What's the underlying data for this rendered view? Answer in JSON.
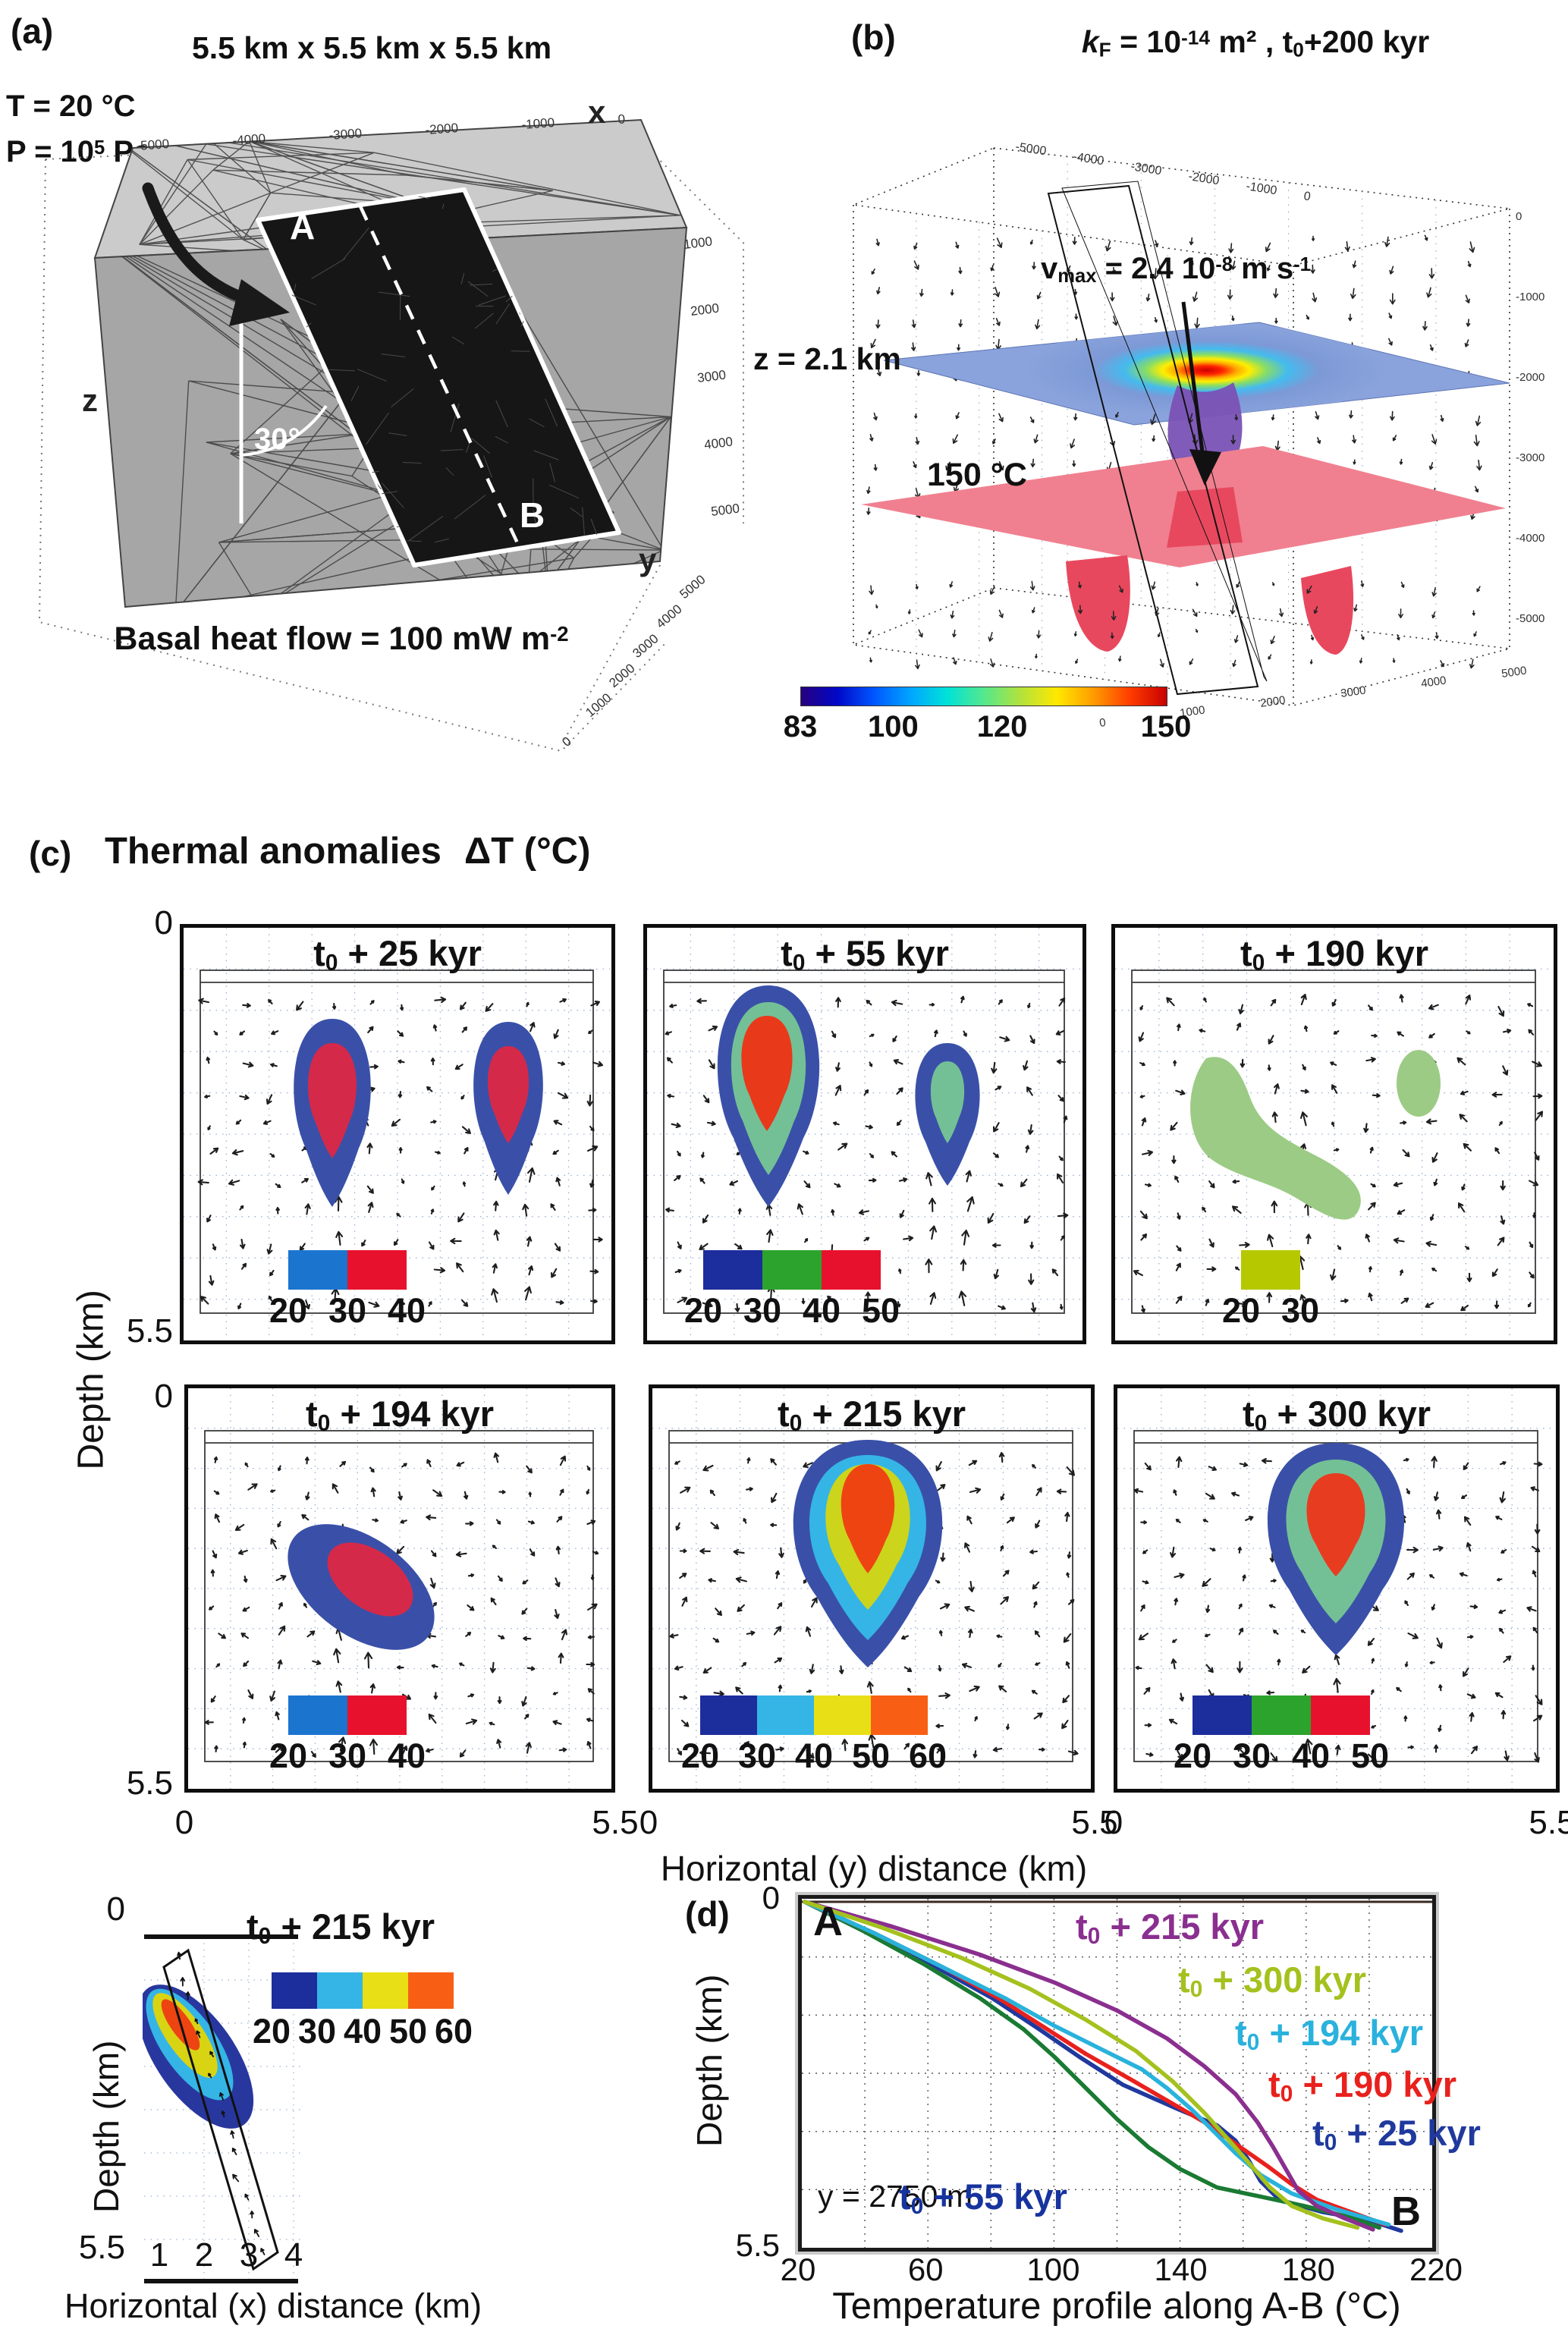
{
  "panel_a": {
    "label": "(a)",
    "title": "5.5 km  x  5.5 km  x  5.5 km",
    "temperature": "T = 20 °C",
    "pressure": {
      "pre": "P = 10",
      "sup": "5",
      "post": " Pa"
    },
    "basal": {
      "pre": "Basal heat flow = 100 mW m",
      "sup": "-2"
    },
    "axis_x": "x",
    "axis_y": "y",
    "axis_z": "z",
    "dip_angle": "30°",
    "point_a": "A",
    "point_b": "B",
    "x_ticks": [
      "-5000",
      "-4000",
      "-3000",
      "-2000",
      "-1000",
      "0"
    ],
    "z_ticks": [
      "1000",
      "2000",
      "3000",
      "4000",
      "5000"
    ],
    "y_ticks": [
      "5000",
      "4000",
      "3000",
      "2000",
      "1000",
      "0"
    ]
  },
  "panel_b": {
    "label": "(b)",
    "title": {
      "k": "k",
      "k_sub": "F",
      "mid": " = 10",
      "sup": "-14",
      "mid2": " m² , t",
      "sub2": "0",
      "end": "+200 kyr"
    },
    "z_slice": "z = 2.1 km",
    "isotherm": "150 °C",
    "vmax": {
      "pre": "v",
      "sub": "max",
      "mid": " = 2.4 10",
      "sup": "-8",
      "post": " m s",
      "sup2": "-1"
    },
    "x_ticks": [
      "-5000",
      "-4000",
      "-3000",
      "-2000",
      "-1000",
      "0"
    ],
    "z_ticks": [
      "0",
      "-1000",
      "-2000",
      "-3000",
      "-4000",
      "-5000"
    ],
    "y_ticks": [
      "0",
      "1000",
      "2000",
      "3000",
      "4000",
      "5000"
    ],
    "colorbar": {
      "min": 83,
      "max": 150,
      "ticks": [
        {
          "label": "83",
          "pos": 0.0
        },
        {
          "label": "100",
          "pos": 0.254
        },
        {
          "label": "120",
          "pos": 0.552
        },
        {
          "label": "150",
          "pos": 1.0
        }
      ],
      "gradient": [
        "#28007f",
        "#0008c8",
        "#0057ff",
        "#00a6ff",
        "#00e2d8",
        "#54e88c",
        "#b2e23c",
        "#ffe800",
        "#ff9c00",
        "#ff3c00",
        "#c80000"
      ]
    }
  },
  "panel_c": {
    "label": "(c)",
    "title": "Thermal anomalies",
    "delta": "ΔT  (°C)",
    "ylabel": "Depth  (km)",
    "y_top": "0",
    "y_bottom": "5.5",
    "x_left": "0",
    "x_right": "5.5",
    "xlabel_y": "Horizontal (y) distance  (km)",
    "xlabel_x": "Horizontal (x) distance  (km)",
    "subplots": [
      {
        "id": "t25",
        "title": {
          "pre": "t",
          "sub": "0",
          "post": " + 25 kyr"
        },
        "rings": [
          "#3a50a8",
          "#d5294a"
        ],
        "colorbar": {
          "segments": [
            "#1b75cf",
            "#e8112d"
          ],
          "labels": [
            "20",
            "30",
            "40"
          ]
        }
      },
      {
        "id": "t55",
        "title": {
          "pre": "t",
          "sub": "0",
          "post": " + 55 kyr"
        },
        "rings": [
          "#3a50a8",
          "#74c096",
          "#e8391b"
        ],
        "colorbar": {
          "segments": [
            "#1c2d9c",
            "#2ca32c",
            "#e8112d"
          ],
          "labels": [
            "20",
            "30",
            "40",
            "50"
          ]
        }
      },
      {
        "id": "t190",
        "title": {
          "pre": "t",
          "sub": "0",
          "post": " + 190 kyr"
        },
        "rings": [
          "#9ccb85"
        ],
        "colorbar": {
          "segments": [
            "#b6c800"
          ],
          "labels": [
            "20",
            "30"
          ]
        }
      },
      {
        "id": "t194",
        "title": {
          "pre": "t",
          "sub": "0",
          "post": " + 194 kyr"
        },
        "rings": [
          "#3a50a8",
          "#d5294a"
        ],
        "colorbar": {
          "segments": [
            "#1b75cf",
            "#e8112d"
          ],
          "labels": [
            "20",
            "30",
            "40"
          ]
        }
      },
      {
        "id": "t215",
        "title": {
          "pre": "t",
          "sub": "0",
          "post": " + 215 kyr"
        },
        "rings": [
          "#3a50a8",
          "#35b5e5",
          "#ccd41c",
          "#ee4411"
        ],
        "colorbar": {
          "segments": [
            "#1c2d9c",
            "#35b5e5",
            "#e8df16",
            "#f85f14"
          ],
          "labels": [
            "20",
            "30",
            "40",
            "50",
            "60"
          ]
        }
      },
      {
        "id": "t300",
        "title": {
          "pre": "t",
          "sub": "0",
          "post": " + 300 kyr"
        },
        "rings": [
          "#3a50a8",
          "#74c096",
          "#e83c20"
        ],
        "colorbar": {
          "segments": [
            "#1c2d9c",
            "#2ca32c",
            "#e8112d"
          ],
          "labels": [
            "20",
            "30",
            "40",
            "50"
          ]
        }
      }
    ],
    "xsection": {
      "title": {
        "pre": "t",
        "sub": "0",
        "post": " + 215 kyr"
      },
      "rings": [
        "#28379e",
        "#35b5e5",
        "#d8d414",
        "#ee4411"
      ],
      "colorbar": {
        "segments": [
          "#1c2d9c",
          "#35b5e5",
          "#e8df16",
          "#f85f14"
        ],
        "labels": [
          "20",
          "30",
          "40",
          "50",
          "60"
        ]
      },
      "x_ticks": [
        "1",
        "2",
        "3",
        "4"
      ],
      "y_top": "0",
      "y_bottom": "5.5"
    }
  },
  "panel_d": {
    "label": "(d)",
    "point_a": "A",
    "point_b": "B",
    "annotation": "y = 2750 m",
    "ylabel": "Depth (km)",
    "y_top": "0",
    "y_bottom": "5.5",
    "x_ticks": [
      "20",
      "60",
      "100",
      "140",
      "180",
      "220"
    ],
    "xlabel": "Temperature profile along A-B (°C)",
    "legend": [
      {
        "id": "t215",
        "color": "#8a2f8f",
        "label": {
          "pre": "t",
          "sub": "0",
          "post": " + 215 kyr"
        }
      },
      {
        "id": "t300",
        "color": "#a4c11e",
        "label": {
          "pre": "t",
          "sub": "0",
          "post": " + 300 kyr"
        }
      },
      {
        "id": "t194",
        "color": "#29b2dc",
        "label": {
          "pre": "t",
          "sub": "0",
          "post": " + 194 kyr"
        }
      },
      {
        "id": "t190",
        "color": "#e8211d",
        "label": {
          "pre": "t",
          "sub": "0",
          "post": " + 190 kyr"
        }
      },
      {
        "id": "t25",
        "color": "#20399e",
        "label": {
          "pre": "t",
          "sub": "0",
          "post": " + 25 kyr"
        }
      },
      {
        "id": "t55",
        "color": "#16339e",
        "label": {
          "pre": "t",
          "sub": "0",
          "post": " + 55 kyr"
        }
      }
    ]
  },
  "chart_data": {
    "type": "line",
    "title": "Temperature profile along A-B (°C)",
    "xlabel": "Temperature profile along A-B (°C)",
    "ylabel": "Depth (km)",
    "xlim": [
      20,
      220
    ],
    "ylim": [
      0,
      5.5
    ],
    "y_inverted": true,
    "grid": true,
    "annotation": "y = 2750 m",
    "series": [
      {
        "name": "t0 + 25 kyr",
        "color": "#20399e",
        "points": [
          [
            20,
            0
          ],
          [
            40,
            0.5
          ],
          [
            62,
            1.05
          ],
          [
            80,
            1.55
          ],
          [
            95,
            2.05
          ],
          [
            108,
            2.5
          ],
          [
            122,
            2.95
          ],
          [
            140,
            3.35
          ],
          [
            152,
            3.6
          ],
          [
            158,
            3.85
          ],
          [
            162,
            4.15
          ],
          [
            166,
            4.5
          ],
          [
            172,
            4.8
          ],
          [
            186,
            5.0
          ],
          [
            200,
            5.12
          ],
          [
            211,
            5.3
          ]
        ]
      },
      {
        "name": "t0 + 55 kyr",
        "color": "#1a7a33",
        "label_color": "#16339e",
        "points": [
          [
            20,
            0
          ],
          [
            38,
            0.45
          ],
          [
            58,
            1.0
          ],
          [
            76,
            1.55
          ],
          [
            90,
            2.05
          ],
          [
            100,
            2.5
          ],
          [
            110,
            3.0
          ],
          [
            120,
            3.5
          ],
          [
            130,
            3.95
          ],
          [
            140,
            4.3
          ],
          [
            152,
            4.6
          ],
          [
            166,
            4.75
          ],
          [
            180,
            4.9
          ],
          [
            196,
            5.1
          ],
          [
            204,
            5.25
          ]
        ]
      },
      {
        "name": "t0 + 190 kyr",
        "color": "#e8211d",
        "points": [
          [
            20,
            0
          ],
          [
            42,
            0.5
          ],
          [
            64,
            1.05
          ],
          [
            82,
            1.55
          ],
          [
            96,
            2.0
          ],
          [
            110,
            2.45
          ],
          [
            124,
            2.85
          ],
          [
            136,
            3.2
          ],
          [
            148,
            3.55
          ],
          [
            158,
            3.9
          ],
          [
            168,
            4.25
          ],
          [
            176,
            4.55
          ],
          [
            184,
            4.8
          ],
          [
            195,
            5.0
          ],
          [
            206,
            5.2
          ]
        ]
      },
      {
        "name": "t0 + 194 kyr",
        "color": "#29b2dc",
        "points": [
          [
            20,
            0
          ],
          [
            42,
            0.5
          ],
          [
            64,
            1.05
          ],
          [
            84,
            1.55
          ],
          [
            100,
            2.0
          ],
          [
            116,
            2.4
          ],
          [
            128,
            2.7
          ],
          [
            136,
            3.0
          ],
          [
            144,
            3.35
          ],
          [
            151,
            3.7
          ],
          [
            158,
            4.05
          ],
          [
            166,
            4.4
          ],
          [
            176,
            4.7
          ],
          [
            190,
            4.95
          ],
          [
            207,
            5.2
          ]
        ]
      },
      {
        "name": "t0 + 215 kyr",
        "color": "#8a2f8f",
        "points": [
          [
            20,
            0
          ],
          [
            48,
            0.4
          ],
          [
            76,
            0.85
          ],
          [
            100,
            1.3
          ],
          [
            120,
            1.75
          ],
          [
            136,
            2.2
          ],
          [
            148,
            2.65
          ],
          [
            158,
            3.1
          ],
          [
            165,
            3.55
          ],
          [
            170,
            3.95
          ],
          [
            174,
            4.3
          ],
          [
            178,
            4.65
          ],
          [
            184,
            4.9
          ],
          [
            193,
            5.1
          ],
          [
            202,
            5.28
          ]
        ]
      },
      {
        "name": "t0 + 300 kyr",
        "color": "#a4c11e",
        "points": [
          [
            20,
            0
          ],
          [
            45,
            0.42
          ],
          [
            70,
            0.9
          ],
          [
            92,
            1.4
          ],
          [
            110,
            1.9
          ],
          [
            126,
            2.4
          ],
          [
            138,
            2.9
          ],
          [
            148,
            3.4
          ],
          [
            156,
            3.85
          ],
          [
            163,
            4.25
          ],
          [
            169,
            4.6
          ],
          [
            176,
            4.9
          ],
          [
            186,
            5.1
          ],
          [
            197,
            5.25
          ]
        ]
      }
    ]
  }
}
